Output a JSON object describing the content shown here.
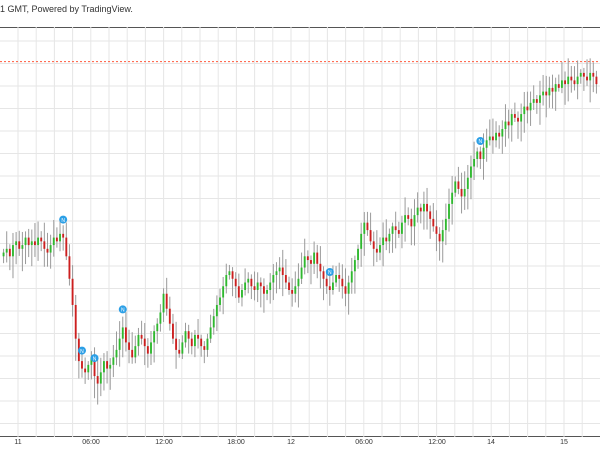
{
  "header": {
    "text": "1 GMT, Powered by TradingView."
  },
  "colors": {
    "up": "#2fb82f",
    "down": "#cc1f1f",
    "grid": "#e6e6e6",
    "reference_line": "#ff5a3c",
    "event_marker": "#2b9fe6",
    "frame": "#555555"
  },
  "chart_data": {
    "type": "candlestick",
    "title": "",
    "xlabel": "",
    "ylabel": "",
    "grid": true,
    "x_ticks": [
      "11",
      "06:00",
      "12:00",
      "18:00",
      "12",
      "06:00",
      "12:00",
      "14",
      "15"
    ],
    "reference_line": {
      "style": "dashed",
      "level": 0.96
    },
    "event_marker_label": "N",
    "event_markers_at": [
      0.1,
      0.155,
      0.2,
      0.55,
      0.8,
      0.135
    ],
    "closes": [
      0.45,
      0.46,
      0.44,
      0.47,
      0.48,
      0.46,
      0.47,
      0.49,
      0.47,
      0.48,
      0.47,
      0.49,
      0.48,
      0.46,
      0.45,
      0.47,
      0.49,
      0.48,
      0.5,
      0.49,
      0.44,
      0.38,
      0.31,
      0.22,
      0.16,
      0.14,
      0.13,
      0.15,
      0.17,
      0.12,
      0.1,
      0.13,
      0.16,
      0.14,
      0.15,
      0.17,
      0.19,
      0.22,
      0.25,
      0.21,
      0.19,
      0.17,
      0.2,
      0.23,
      0.22,
      0.2,
      0.18,
      0.21,
      0.24,
      0.26,
      0.29,
      0.34,
      0.3,
      0.26,
      0.22,
      0.19,
      0.18,
      0.21,
      0.24,
      0.22,
      0.2,
      0.23,
      0.22,
      0.2,
      0.19,
      0.22,
      0.25,
      0.28,
      0.31,
      0.33,
      0.36,
      0.39,
      0.4,
      0.38,
      0.36,
      0.33,
      0.35,
      0.37,
      0.38,
      0.36,
      0.35,
      0.37,
      0.36,
      0.34,
      0.35,
      0.37,
      0.39,
      0.4,
      0.41,
      0.39,
      0.37,
      0.35,
      0.34,
      0.36,
      0.38,
      0.41,
      0.44,
      0.43,
      0.42,
      0.45,
      0.42,
      0.4,
      0.38,
      0.36,
      0.35,
      0.37,
      0.39,
      0.38,
      0.36,
      0.34,
      0.37,
      0.4,
      0.43,
      0.46,
      0.5,
      0.53,
      0.51,
      0.48,
      0.46,
      0.45,
      0.47,
      0.49,
      0.48,
      0.5,
      0.52,
      0.51,
      0.5,
      0.53,
      0.55,
      0.54,
      0.52,
      0.55,
      0.57,
      0.56,
      0.58,
      0.56,
      0.54,
      0.52,
      0.5,
      0.48,
      0.51,
      0.54,
      0.58,
      0.61,
      0.64,
      0.62,
      0.6,
      0.62,
      0.65,
      0.68,
      0.7,
      0.72,
      0.7,
      0.73,
      0.75,
      0.76,
      0.75,
      0.77,
      0.76,
      0.78,
      0.8,
      0.79,
      0.82,
      0.81,
      0.8,
      0.82,
      0.84,
      0.83,
      0.85,
      0.86,
      0.85,
      0.87,
      0.88,
      0.87,
      0.89,
      0.88,
      0.9,
      0.89,
      0.91,
      0.9,
      0.92,
      0.91,
      0.9,
      0.92,
      0.93,
      0.92,
      0.91,
      0.93,
      0.92,
      0.9
    ]
  }
}
